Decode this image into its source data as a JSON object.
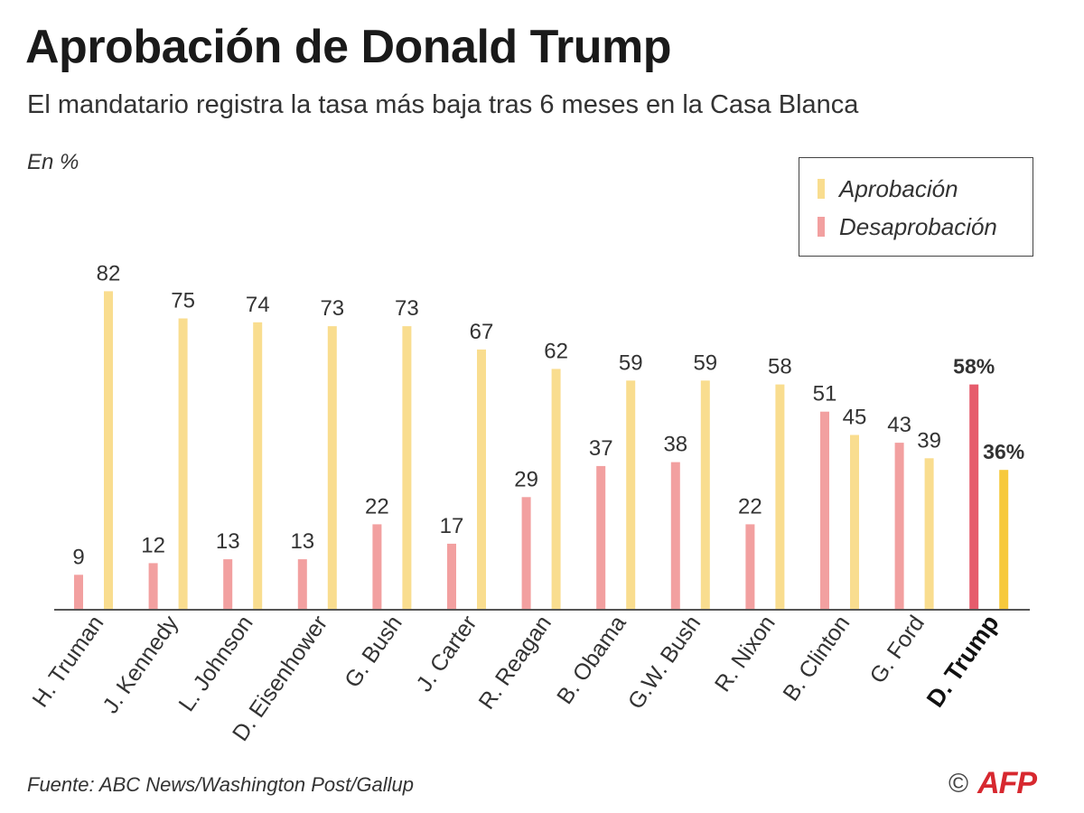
{
  "title": "Aprobación de Donald Trump",
  "subtitle": "El mandatario registra la tasa más baja tras 6 meses en la Casa Blanca",
  "unit": "En %",
  "legend": {
    "approval": "Aprobación",
    "disapproval": "Desaprobación"
  },
  "source": "Fuente: ABC News/Washington Post/Gallup",
  "credit": {
    "copyright": "©",
    "logo_text": "AFP"
  },
  "colors": {
    "approval": "#f9dd8f",
    "disapproval": "#f2a0a0",
    "approval_highlight": "#f7c93c",
    "disapproval_highlight": "#e65c6c",
    "axis": "#555555"
  },
  "chart_data": {
    "type": "bar",
    "title": "Aprobación de Donald Trump",
    "ylabel": "En %",
    "ylim": [
      0,
      100
    ],
    "grid": false,
    "legend_position": "top-right",
    "categories": [
      "H. Truman",
      "J. Kennedy",
      "L. Johnson",
      "D. Eisenhower",
      "G. Bush",
      "J. Carter",
      "R. Reagan",
      "B. Obama",
      "G.W. Bush",
      "R. Nixon",
      "B. Clinton",
      "G. Ford",
      "D. Trump"
    ],
    "highlight": "D. Trump",
    "series": [
      {
        "name": "Desaprobación",
        "values": [
          9,
          12,
          13,
          13,
          22,
          17,
          29,
          37,
          38,
          22,
          51,
          43,
          58
        ]
      },
      {
        "name": "Aprobación",
        "values": [
          82,
          75,
          74,
          73,
          73,
          67,
          62,
          59,
          59,
          58,
          45,
          39,
          36
        ]
      }
    ],
    "value_labels": {
      "Desaprobación": [
        "9",
        "12",
        "13",
        "13",
        "22",
        "17",
        "29",
        "37",
        "38",
        "22",
        "51",
        "43",
        "58%"
      ],
      "Aprobación": [
        "82",
        "75",
        "74",
        "73",
        "73",
        "67",
        "62",
        "59",
        "59",
        "58",
        "45",
        "39",
        "36%"
      ]
    }
  }
}
